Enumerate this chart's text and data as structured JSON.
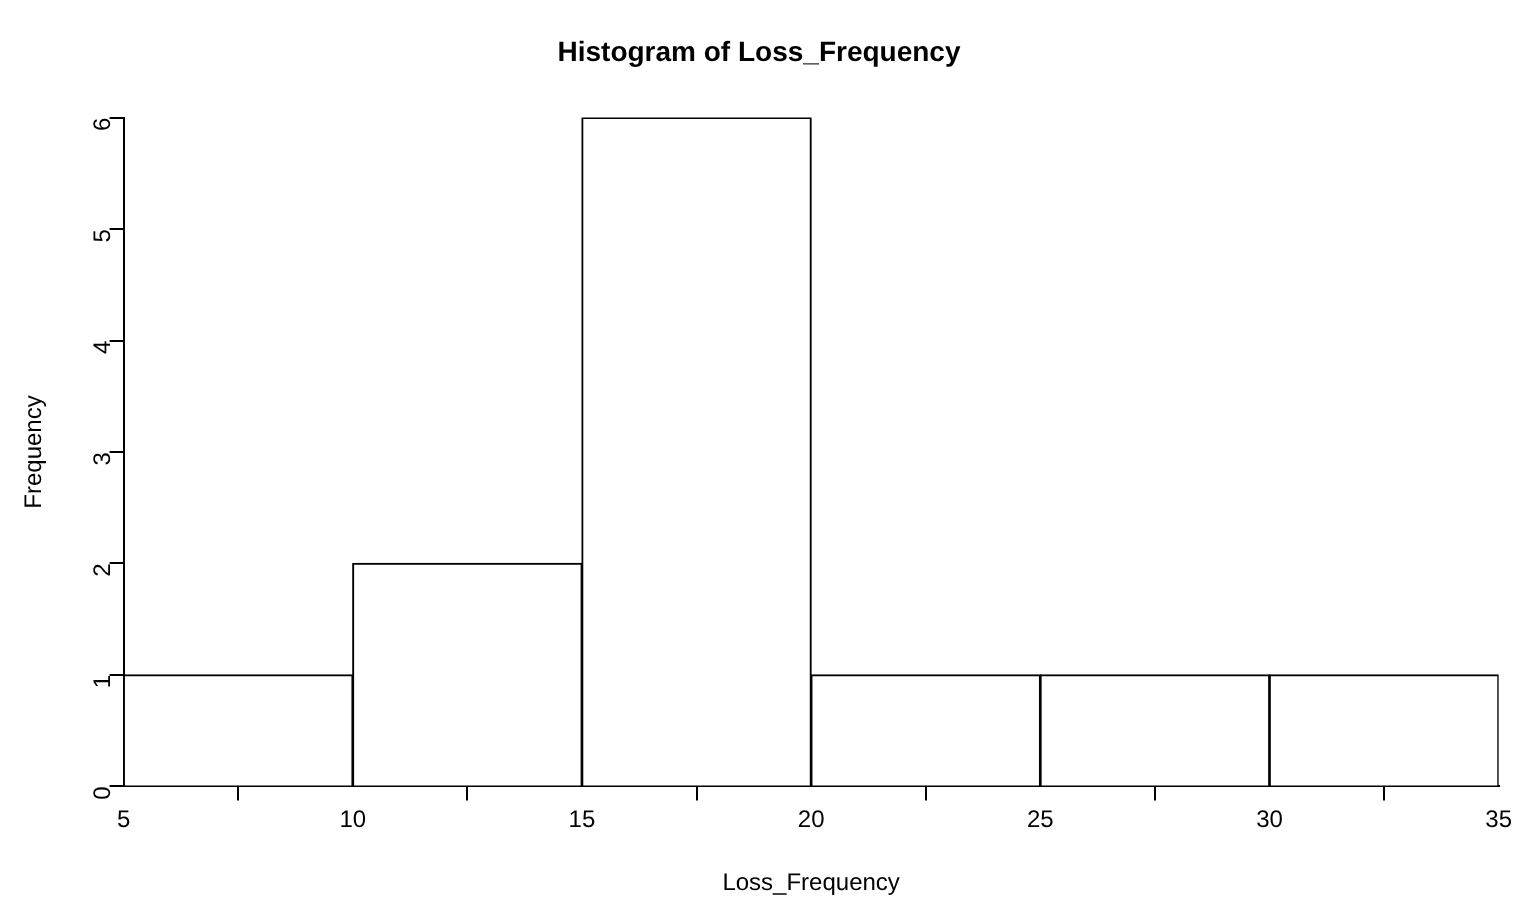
{
  "chart_data": {
    "type": "histogram",
    "title": "Histogram of Loss_Frequency",
    "xlabel": "Loss_Frequency",
    "ylabel": "Frequency",
    "bins": [
      5,
      10,
      15,
      20,
      25,
      30,
      35
    ],
    "values": [
      1,
      2,
      6,
      1,
      1,
      1
    ],
    "color": "#ffffff",
    "xlim": [
      5,
      35
    ],
    "xticks": [
      5,
      10,
      15,
      20,
      25,
      30,
      35
    ],
    "ylim": [
      0,
      6
    ],
    "yticks": [
      0,
      1,
      2,
      3,
      4,
      5,
      6
    ],
    "grid": false,
    "legend": false
  }
}
